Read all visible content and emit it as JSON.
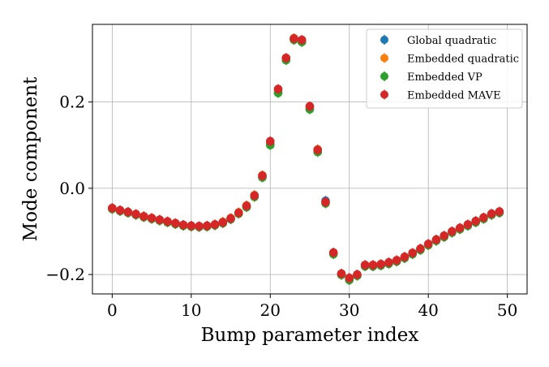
{
  "chart_data": {
    "type": "scatter",
    "title": "",
    "xlabel": "Bump parameter index",
    "ylabel": "Mode component",
    "xlim": [
      -2.5,
      52.5
    ],
    "ylim": [
      -0.245,
      0.38
    ],
    "xticks": [
      0,
      10,
      20,
      30,
      40,
      50
    ],
    "xtick_labels": [
      "0",
      "10",
      "20",
      "30",
      "40",
      "50"
    ],
    "yticks": [
      -0.2,
      0.0,
      0.2
    ],
    "ytick_labels": [
      "−0.2",
      "0.0",
      "0.2"
    ],
    "grid": true,
    "legend_position": "top-right",
    "x": [
      0,
      1,
      2,
      3,
      4,
      5,
      6,
      7,
      8,
      9,
      10,
      11,
      12,
      13,
      14,
      15,
      16,
      17,
      18,
      19,
      20,
      21,
      22,
      23,
      24,
      25,
      26,
      27,
      28,
      29,
      30,
      31,
      32,
      33,
      34,
      35,
      36,
      37,
      38,
      39,
      40,
      41,
      42,
      43,
      44,
      45,
      46,
      47,
      48,
      49
    ],
    "series": [
      {
        "name": "Global quadratic",
        "color": "#1f77b4",
        "values": [
          -0.047,
          -0.052,
          -0.056,
          -0.061,
          -0.066,
          -0.07,
          -0.074,
          -0.078,
          -0.082,
          -0.086,
          -0.088,
          -0.089,
          -0.088,
          -0.085,
          -0.08,
          -0.071,
          -0.058,
          -0.043,
          -0.019,
          0.026,
          0.102,
          0.222,
          0.298,
          0.345,
          0.34,
          0.184,
          0.085,
          -0.029,
          -0.151,
          -0.199,
          -0.212,
          -0.202,
          -0.18,
          -0.18,
          -0.178,
          -0.174,
          -0.169,
          -0.161,
          -0.152,
          -0.142,
          -0.131,
          -0.121,
          -0.112,
          -0.102,
          -0.094,
          -0.086,
          -0.078,
          -0.07,
          -0.061,
          -0.056
        ]
      },
      {
        "name": "Embedded quadratic",
        "color": "#ff7f0e",
        "values": [
          -0.046,
          -0.051,
          -0.055,
          -0.06,
          -0.065,
          -0.069,
          -0.073,
          -0.077,
          -0.081,
          -0.085,
          -0.087,
          -0.088,
          -0.087,
          -0.084,
          -0.078,
          -0.069,
          -0.056,
          -0.04,
          -0.016,
          0.03,
          0.108,
          0.229,
          0.302,
          0.348,
          0.343,
          0.189,
          0.09,
          -0.034,
          -0.15,
          -0.198,
          -0.21,
          -0.201,
          -0.178,
          -0.178,
          -0.176,
          -0.172,
          -0.167,
          -0.16,
          -0.15,
          -0.141,
          -0.13,
          -0.12,
          -0.111,
          -0.101,
          -0.093,
          -0.085,
          -0.077,
          -0.068,
          -0.06,
          -0.055
        ]
      },
      {
        "name": "Embedded VP",
        "color": "#2ca02c",
        "values": [
          -0.048,
          -0.053,
          -0.057,
          -0.062,
          -0.067,
          -0.071,
          -0.075,
          -0.079,
          -0.083,
          -0.087,
          -0.089,
          -0.09,
          -0.089,
          -0.086,
          -0.081,
          -0.072,
          -0.059,
          -0.044,
          -0.02,
          0.025,
          0.1,
          0.221,
          0.297,
          0.344,
          0.339,
          0.183,
          0.084,
          -0.035,
          -0.153,
          -0.201,
          -0.213,
          -0.203,
          -0.181,
          -0.181,
          -0.179,
          -0.175,
          -0.17,
          -0.162,
          -0.153,
          -0.143,
          -0.132,
          -0.122,
          -0.113,
          -0.103,
          -0.095,
          -0.087,
          -0.079,
          -0.071,
          -0.062,
          -0.057
        ]
      },
      {
        "name": "Embedded MAVE",
        "color": "#d62728",
        "values": [
          -0.046,
          -0.051,
          -0.055,
          -0.06,
          -0.065,
          -0.069,
          -0.073,
          -0.077,
          -0.081,
          -0.085,
          -0.087,
          -0.088,
          -0.087,
          -0.084,
          -0.079,
          -0.07,
          -0.057,
          -0.041,
          -0.017,
          0.029,
          0.109,
          0.23,
          0.302,
          0.347,
          0.344,
          0.19,
          0.089,
          -0.032,
          -0.149,
          -0.198,
          -0.208,
          -0.2,
          -0.178,
          -0.178,
          -0.176,
          -0.172,
          -0.167,
          -0.159,
          -0.15,
          -0.14,
          -0.129,
          -0.119,
          -0.11,
          -0.1,
          -0.092,
          -0.084,
          -0.076,
          -0.068,
          -0.059,
          -0.054
        ]
      }
    ]
  }
}
